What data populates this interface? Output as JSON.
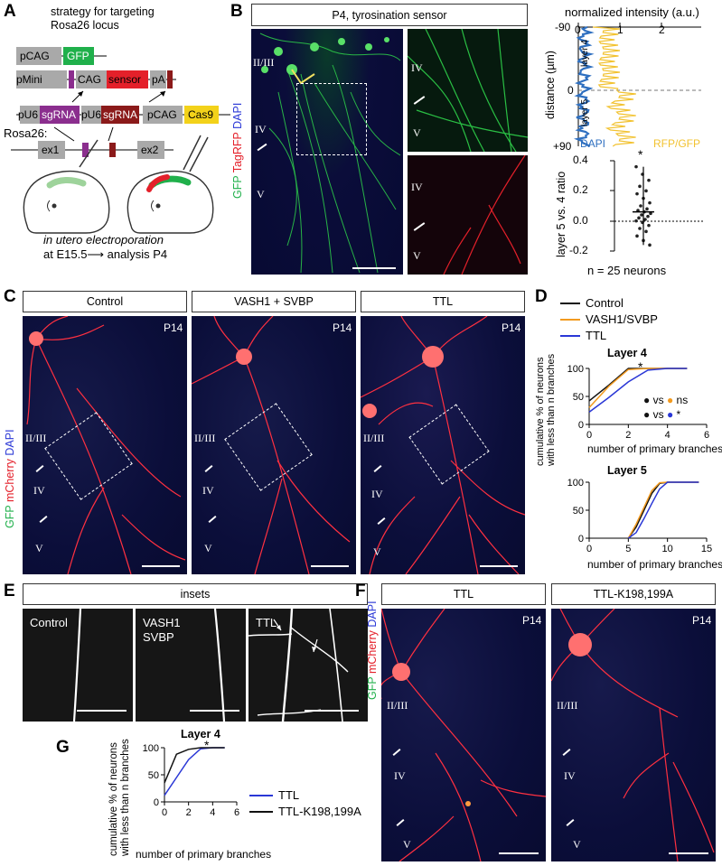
{
  "panels": {
    "A": {
      "label": "A",
      "title_line1": "strategy for targeting",
      "title_line2": "Rosa26 locus",
      "construct1": {
        "promoter": "pCAG",
        "gene": "GFP"
      },
      "construct2": {
        "promoter": "pMini",
        "cag": "CAG",
        "sensor": "sensor",
        "pa": "pA"
      },
      "construct3": {
        "u6a": "pU6",
        "sg1": "sgRNA",
        "u6b": "pU6",
        "sg2": "sgRNA",
        "cag": "pCAG",
        "cas9": "Cas9"
      },
      "locus": {
        "name": "Rosa26:",
        "ex1": "ex1",
        "ex2": "ex2"
      },
      "caption_line1": "in utero electroporation",
      "caption_line2": "at E15.5⟶ analysis P4",
      "colors": {
        "gray": "#a9a9a9",
        "green": "#20b04b",
        "red": "#e4202a",
        "purple": "#8b2e8e",
        "darkred": "#8b1a1a",
        "yellow": "#f3d21a"
      }
    },
    "B": {
      "label": "B",
      "title": "P4, tyrosination sensor",
      "stain_gfp": "GFP",
      "stain_tag": "TagRFP",
      "stain_dapi": "DAPI",
      "layers_main": [
        "II/III",
        "IV",
        "V"
      ],
      "layers_inset": [
        "IV",
        "V"
      ],
      "intensity_title": "normalized intensity (a.u.)",
      "intensity_ticks_x": [
        "0",
        "1",
        "2"
      ],
      "intensity_ticks_y": [
        "-90",
        "0",
        "+90"
      ],
      "intensity_ylabel": "distance (µm)",
      "intensity_layer4": "layer 4",
      "intensity_layer5": "layer 5",
      "legend_dapi": "DAPI",
      "legend_rfp": "RFP/GFP",
      "ratio_ylabel": "layer 5 vs. 4 ratio",
      "ratio_ticks": [
        "0.4",
        "0.2",
        "0.0",
        "-0.2"
      ],
      "ratio_star": "*",
      "ratio_n": "n = 25 neurons"
    },
    "C": {
      "label": "C",
      "conditions": [
        "Control",
        "VASH1 + SVBP",
        "TTL"
      ],
      "age": "P14",
      "stain_gfp": "GFP",
      "stain_mch": "mCherry",
      "stain_dapi": "DAPI",
      "layers": [
        "II/III",
        "IV",
        "V"
      ]
    },
    "D": {
      "label": "D",
      "legend": [
        "Control",
        "VASH1/SVBP",
        "TTL"
      ],
      "legend_colors": [
        "#111111",
        "#f29a1f",
        "#2a37d6"
      ],
      "ylabel_line1": "cumulative % of neurons with less",
      "ylabel_line2": "than n branches",
      "stats_vs": "vs",
      "stats_ns": "ns",
      "stats_star": "*"
    },
    "E": {
      "label": "E",
      "title": "insets",
      "conditions": [
        "Control",
        "VASH1",
        "SVBP",
        "TTL"
      ]
    },
    "F": {
      "label": "F",
      "conditions": [
        "TTL",
        "TTL-K198,199A"
      ],
      "age": "P14",
      "stain_gfp": "GFP",
      "stain_mch": "mCherry",
      "stain_dapi": "DAPI",
      "layers": [
        "II/III",
        "IV",
        "V"
      ]
    },
    "G": {
      "label": "G",
      "ylabel_line1": "cumulative % of neurons",
      "ylabel_line2": "with less than n branches",
      "legend": [
        "TTL",
        "TTL-K198,199A"
      ],
      "legend_colors": [
        "#2a37d6",
        "#111111"
      ]
    }
  },
  "chart_data": [
    {
      "id": "D-layer4",
      "type": "line",
      "title": "Layer 4",
      "xlabel": "number of primary branches",
      "ylabel": "cumulative % of neurons with less than n branches",
      "xlim": [
        0,
        6
      ],
      "ylim": [
        0,
        100
      ],
      "xticks": [
        0,
        2,
        4,
        6
      ],
      "yticks": [
        0,
        50,
        100
      ],
      "series": [
        {
          "name": "Control",
          "color": "#111111",
          "x": [
            0,
            1,
            2,
            3,
            4,
            5
          ],
          "y": [
            42,
            70,
            100,
            100,
            100,
            100
          ]
        },
        {
          "name": "VASH1/SVBP",
          "color": "#f29a1f",
          "x": [
            0,
            1,
            2,
            3,
            4,
            5
          ],
          "y": [
            30,
            68,
            98,
            100,
            100,
            100
          ]
        },
        {
          "name": "TTL",
          "color": "#2a37d6",
          "x": [
            0,
            1,
            2,
            3,
            4,
            5
          ],
          "y": [
            22,
            48,
            76,
            97,
            100,
            100
          ]
        }
      ],
      "annotation": "*"
    },
    {
      "id": "D-layer5",
      "type": "line",
      "title": "Layer 5",
      "xlabel": "number of primary branches",
      "ylabel": "",
      "xlim": [
        0,
        15
      ],
      "ylim": [
        0,
        100
      ],
      "xticks": [
        0,
        5,
        10,
        15
      ],
      "yticks": [
        0,
        50,
        100
      ],
      "series": [
        {
          "name": "Control",
          "color": "#111111",
          "x": [
            5,
            6,
            7,
            8,
            9,
            10,
            11,
            12,
            13,
            14
          ],
          "y": [
            0,
            20,
            50,
            80,
            98,
            100,
            100,
            100,
            100,
            100
          ]
        },
        {
          "name": "VASH1/SVBP",
          "color": "#f29a1f",
          "x": [
            5,
            6,
            7,
            8,
            9,
            10,
            11,
            12,
            13,
            14
          ],
          "y": [
            0,
            25,
            55,
            85,
            99,
            100,
            100,
            100,
            100,
            100
          ]
        },
        {
          "name": "TTL",
          "color": "#2a37d6",
          "x": [
            5,
            6,
            7,
            8,
            9,
            10,
            11,
            12,
            13,
            14
          ],
          "y": [
            0,
            10,
            35,
            62,
            88,
            100,
            100,
            100,
            100,
            100
          ]
        }
      ]
    },
    {
      "id": "G-layer4",
      "type": "line",
      "title": "Layer 4",
      "xlabel": "number of primary branches",
      "ylabel": "cumulative % of neurons with less than n branches",
      "xlim": [
        0,
        6
      ],
      "ylim": [
        0,
        100
      ],
      "xticks": [
        0,
        2,
        4,
        6
      ],
      "yticks": [
        0,
        50,
        100
      ],
      "series": [
        {
          "name": "TTL",
          "color": "#2a37d6",
          "x": [
            0,
            1,
            2,
            3,
            4,
            5
          ],
          "y": [
            12,
            45,
            78,
            98,
            100,
            100
          ]
        },
        {
          "name": "TTL-K198,199A",
          "color": "#111111",
          "x": [
            0,
            1,
            2,
            3,
            4,
            5
          ],
          "y": [
            35,
            88,
            97,
            100,
            100,
            100
          ]
        }
      ],
      "annotation": "*"
    },
    {
      "id": "B-ratio",
      "type": "scatter",
      "title": "",
      "ylabel": "layer 5 vs. 4 ratio",
      "ylim": [
        -0.2,
        0.4
      ],
      "yticks": [
        -0.2,
        0.0,
        0.2,
        0.4
      ],
      "mean": 0.06,
      "sd_high": 0.36,
      "sd_low": -0.16,
      "values": [
        0.36,
        0.31,
        0.27,
        0.23,
        0.2,
        0.18,
        0.15,
        0.12,
        0.1,
        0.08,
        0.07,
        0.06,
        0.05,
        0.04,
        0.03,
        0.02,
        0.01,
        0.0,
        -0.01,
        -0.03,
        -0.05,
        -0.07,
        -0.1,
        -0.13,
        -0.16
      ]
    }
  ]
}
